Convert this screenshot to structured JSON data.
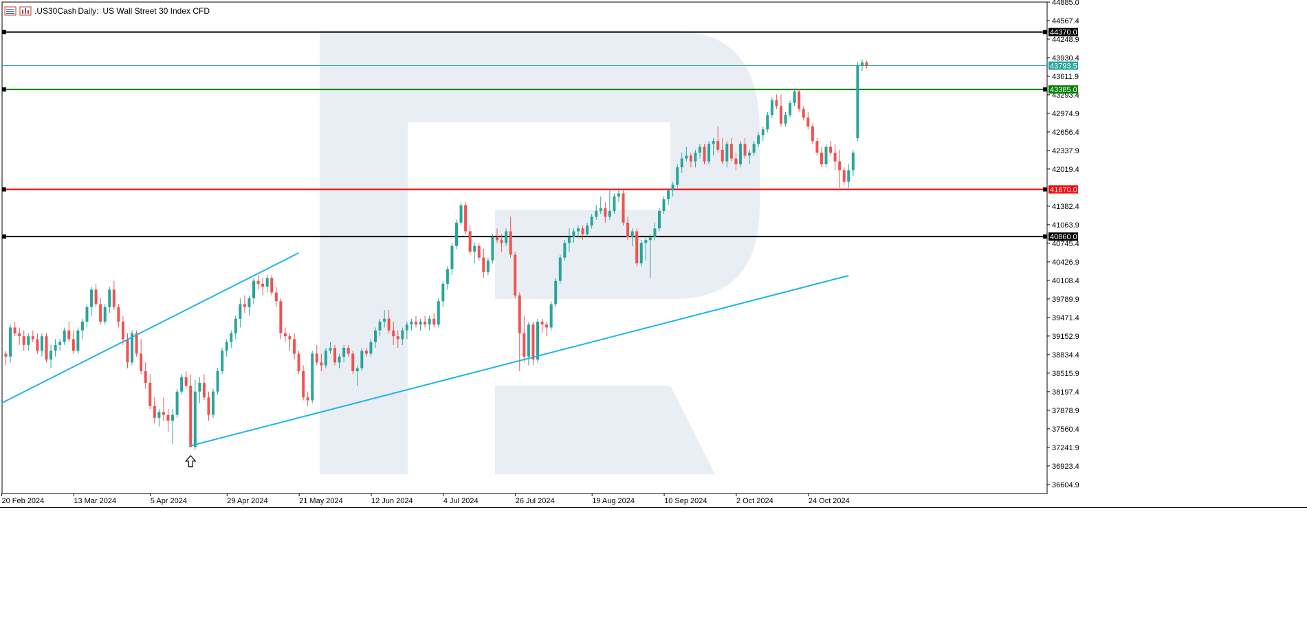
{
  "header": {
    "symbol": ".US30Cash",
    "timeframe": "Daily:",
    "description": "US Wall Street 30 Index CFD"
  },
  "colors": {
    "bull": "#26a69a",
    "bear": "#ef5350",
    "trendline": "#1eb4f0",
    "resistance_black": "#000000",
    "level_green": "#008000",
    "level_red": "#ff0000",
    "current_price": "#26a69a",
    "watermark": "#e9eef5"
  },
  "chart_data": {
    "type": "candlestick",
    "ylim": [
      36450,
      44885.0
    ],
    "y_ticks": [
      "44885.0",
      "44567.4",
      "44248.9",
      "43930.4",
      "43611.9",
      "43293.4",
      "42974.9",
      "42656.4",
      "42337.9",
      "42019.4",
      "41382.4",
      "41063.9",
      "40745.4",
      "40426.9",
      "40108.4",
      "39789.9",
      "39471.4",
      "39152.9",
      "38834.4",
      "38515.9",
      "38197.4",
      "37878.9",
      "37560.4",
      "37241.9",
      "36923.4",
      "36604.9"
    ],
    "x_labels": [
      {
        "label": "20 Feb 2024",
        "bar": 0
      },
      {
        "label": "13 Mar 2024",
        "bar": 16
      },
      {
        "label": "5 Apr 2024",
        "bar": 33
      },
      {
        "label": "29 Apr 2024",
        "bar": 50
      },
      {
        "label": "21 May 2024",
        "bar": 66
      },
      {
        "label": "12 Jun 2024",
        "bar": 82
      },
      {
        "label": "4 Jul 2024",
        "bar": 98
      },
      {
        "label": "26 Jul 2024",
        "bar": 114
      },
      {
        "label": "19 Aug 2024",
        "bar": 131
      },
      {
        "label": "10 Sep 2024",
        "bar": 147
      },
      {
        "label": "2 Oct 2024",
        "bar": 163
      },
      {
        "label": "24 Oct 2024",
        "bar": 179
      }
    ],
    "levels": [
      {
        "price": 44370.0,
        "label": "44370.0",
        "color": "#000000",
        "width": 2
      },
      {
        "price": 43385.0,
        "label": "43385.0",
        "color": "#008000",
        "width": 2
      },
      {
        "price": 41670.0,
        "label": "41670.0",
        "color": "#ff0000",
        "width": 2
      },
      {
        "price": 40860.0,
        "label": "40860.0",
        "color": "#000000",
        "width": 2
      },
      {
        "price": 43793.5,
        "label": "43793.5",
        "color": "#26a69a",
        "width": 1
      }
    ],
    "trendlines": [
      {
        "bar1": -1,
        "price1": 38000,
        "bar2": 65,
        "price2": 40580
      },
      {
        "bar1": 41,
        "price1": 37270,
        "bar2": 187,
        "price2": 40190
      }
    ],
    "arrow": {
      "bar": 41,
      "price": 37100
    },
    "candles": [
      [
        38850,
        38900,
        38650,
        38800
      ],
      [
        38800,
        39350,
        38700,
        39300
      ],
      [
        39300,
        39400,
        39150,
        39200
      ],
      [
        39200,
        39300,
        39000,
        39150
      ],
      [
        39150,
        39250,
        38900,
        39000
      ],
      [
        39000,
        39200,
        38900,
        39150
      ],
      [
        39150,
        39250,
        39050,
        39100
      ],
      [
        39100,
        39200,
        38850,
        38900
      ],
      [
        38900,
        39200,
        38800,
        39150
      ],
      [
        39150,
        39200,
        38700,
        38750
      ],
      [
        38750,
        39000,
        38600,
        38900
      ],
      [
        38900,
        39100,
        38800,
        39000
      ],
      [
        39000,
        39100,
        38900,
        39050
      ],
      [
        39050,
        39300,
        39000,
        39250
      ],
      [
        39250,
        39400,
        39050,
        39100
      ],
      [
        39100,
        39250,
        38850,
        38900
      ],
      [
        38900,
        39300,
        38850,
        39250
      ],
      [
        39250,
        39450,
        39100,
        39400
      ],
      [
        39400,
        39700,
        39300,
        39650
      ],
      [
        39650,
        40000,
        39500,
        39950
      ],
      [
        39950,
        40050,
        39650,
        39700
      ],
      [
        39700,
        39800,
        39350,
        39400
      ],
      [
        39400,
        39700,
        39350,
        39650
      ],
      [
        39650,
        40000,
        39550,
        39950
      ],
      [
        39950,
        40100,
        39600,
        39650
      ],
      [
        39650,
        39700,
        39300,
        39400
      ],
      [
        39400,
        39500,
        39000,
        39100
      ],
      [
        39100,
        39200,
        38600,
        38700
      ],
      [
        38700,
        39250,
        38650,
        39200
      ],
      [
        39200,
        39250,
        38800,
        38850
      ],
      [
        38850,
        39100,
        38500,
        38550
      ],
      [
        38550,
        38700,
        38250,
        38350
      ],
      [
        38350,
        38500,
        37900,
        37950
      ],
      [
        37950,
        38100,
        37650,
        37750
      ],
      [
        37750,
        37900,
        37600,
        37850
      ],
      [
        37850,
        38100,
        37700,
        37800
      ],
      [
        37800,
        37900,
        37500,
        37700
      ],
      [
        37700,
        37900,
        37300,
        37800
      ],
      [
        37800,
        38250,
        37750,
        38200
      ],
      [
        38200,
        38500,
        38150,
        38450
      ],
      [
        38450,
        38550,
        38250,
        38300
      ],
      [
        38300,
        38500,
        37250,
        37250
      ],
      [
        37250,
        38400,
        37200,
        38200
      ],
      [
        38200,
        38450,
        38000,
        38350
      ],
      [
        38350,
        38500,
        38050,
        38100
      ],
      [
        38100,
        38200,
        37700,
        37800
      ],
      [
        37800,
        38250,
        37750,
        38200
      ],
      [
        38200,
        38600,
        38150,
        38550
      ],
      [
        38550,
        38950,
        38500,
        38900
      ],
      [
        38900,
        39100,
        38800,
        39050
      ],
      [
        39050,
        39250,
        38950,
        39200
      ],
      [
        39200,
        39500,
        39100,
        39450
      ],
      [
        39450,
        39800,
        39300,
        39700
      ],
      [
        39700,
        39850,
        39550,
        39650
      ],
      [
        39650,
        39850,
        39500,
        39800
      ],
      [
        39800,
        40150,
        39700,
        40100
      ],
      [
        40100,
        40200,
        39950,
        40050
      ],
      [
        40050,
        40150,
        39850,
        40000
      ],
      [
        40000,
        40200,
        39900,
        40150
      ],
      [
        40150,
        40200,
        39850,
        39900
      ],
      [
        39900,
        40000,
        39650,
        39750
      ],
      [
        39750,
        39800,
        39100,
        39200
      ],
      [
        39200,
        39300,
        39050,
        39150
      ],
      [
        39150,
        39200,
        38900,
        39100
      ],
      [
        39100,
        39200,
        38750,
        38850
      ],
      [
        38850,
        38900,
        38500,
        38550
      ],
      [
        38550,
        38650,
        38050,
        38100
      ],
      [
        38100,
        38200,
        37950,
        38050
      ],
      [
        38050,
        38900,
        38000,
        38850
      ],
      [
        38850,
        39000,
        38650,
        38700
      ],
      [
        38700,
        38850,
        38550,
        38650
      ],
      [
        38650,
        38950,
        38600,
        38900
      ],
      [
        38900,
        39050,
        38850,
        38950
      ],
      [
        38950,
        39000,
        38650,
        38700
      ],
      [
        38700,
        38850,
        38600,
        38800
      ],
      [
        38800,
        39000,
        38700,
        38950
      ],
      [
        38950,
        39000,
        38800,
        38850
      ],
      [
        38850,
        38900,
        38500,
        38550
      ],
      [
        38550,
        38650,
        38300,
        38600
      ],
      [
        38600,
        38950,
        38550,
        38900
      ],
      [
        38900,
        38950,
        38800,
        38850
      ],
      [
        38850,
        39100,
        38800,
        39050
      ],
      [
        39050,
        39300,
        38950,
        39250
      ],
      [
        39250,
        39450,
        39150,
        39400
      ],
      [
        39400,
        39600,
        39300,
        39450
      ],
      [
        39450,
        39600,
        39200,
        39250
      ],
      [
        39250,
        39400,
        39000,
        39150
      ],
      [
        39150,
        39250,
        38950,
        39100
      ],
      [
        39100,
        39300,
        39000,
        39250
      ],
      [
        39250,
        39400,
        39100,
        39350
      ],
      [
        39350,
        39450,
        39250,
        39400
      ],
      [
        39400,
        39500,
        39300,
        39350
      ],
      [
        39350,
        39450,
        39250,
        39400
      ],
      [
        39400,
        39500,
        39300,
        39350
      ],
      [
        39350,
        39500,
        39250,
        39450
      ],
      [
        39450,
        39550,
        39300,
        39350
      ],
      [
        39350,
        39800,
        39300,
        39750
      ],
      [
        39750,
        40100,
        39650,
        40050
      ],
      [
        40050,
        40350,
        39950,
        40300
      ],
      [
        40300,
        40750,
        40200,
        40700
      ],
      [
        40700,
        41150,
        40650,
        41100
      ],
      [
        41100,
        41450,
        41050,
        41400
      ],
      [
        41400,
        41450,
        40900,
        40950
      ],
      [
        40950,
        41050,
        40550,
        40600
      ],
      [
        40600,
        40750,
        40400,
        40700
      ],
      [
        40700,
        40750,
        40450,
        40500
      ],
      [
        40500,
        40650,
        40150,
        40250
      ],
      [
        40250,
        40500,
        40200,
        40450
      ],
      [
        40450,
        40900,
        40400,
        40850
      ],
      [
        40850,
        41000,
        40750,
        40800
      ],
      [
        40800,
        40900,
        40600,
        40750
      ],
      [
        40750,
        41000,
        40700,
        40950
      ],
      [
        40950,
        41200,
        40500,
        40550
      ],
      [
        40550,
        40600,
        39800,
        39850
      ],
      [
        39850,
        39900,
        38550,
        39200
      ],
      [
        39200,
        39500,
        38700,
        38800
      ],
      [
        38800,
        39400,
        38650,
        39350
      ],
      [
        39350,
        39400,
        38650,
        38750
      ],
      [
        38750,
        39450,
        38700,
        39400
      ],
      [
        39400,
        39450,
        39200,
        39350
      ],
      [
        39350,
        39400,
        39150,
        39300
      ],
      [
        39300,
        39750,
        39250,
        39700
      ],
      [
        39700,
        40150,
        39650,
        40100
      ],
      [
        40100,
        40550,
        40050,
        40500
      ],
      [
        40500,
        40800,
        40450,
        40750
      ],
      [
        40750,
        41000,
        40600,
        40850
      ],
      [
        40850,
        41000,
        40750,
        40950
      ],
      [
        40950,
        41050,
        40850,
        41000
      ],
      [
        41000,
        41050,
        40800,
        40900
      ],
      [
        40900,
        41100,
        40850,
        41050
      ],
      [
        41050,
        41250,
        41000,
        41200
      ],
      [
        41200,
        41400,
        41150,
        41300
      ],
      [
        41300,
        41550,
        41250,
        41350
      ],
      [
        41350,
        41450,
        41100,
        41200
      ],
      [
        41200,
        41650,
        41150,
        41300
      ],
      [
        41300,
        41600,
        41250,
        41550
      ],
      [
        41550,
        41700,
        41450,
        41600
      ],
      [
        41600,
        41650,
        41050,
        41100
      ],
      [
        41100,
        41200,
        40800,
        40850
      ],
      [
        40850,
        41000,
        40700,
        40950
      ],
      [
        40950,
        41000,
        40350,
        40400
      ],
      [
        40400,
        40800,
        40350,
        40750
      ],
      [
        40750,
        40850,
        40450,
        40800
      ],
      [
        40800,
        40900,
        40150,
        40850
      ],
      [
        40850,
        41100,
        40800,
        41000
      ],
      [
        41000,
        41350,
        40950,
        41300
      ],
      [
        41300,
        41550,
        41250,
        41500
      ],
      [
        41500,
        41700,
        41400,
        41650
      ],
      [
        41650,
        41800,
        41550,
        41750
      ],
      [
        41750,
        42100,
        41700,
        42050
      ],
      [
        42050,
        42300,
        41950,
        42200
      ],
      [
        42200,
        42400,
        42150,
        42250
      ],
      [
        42250,
        42300,
        42050,
        42150
      ],
      [
        42150,
        42350,
        42050,
        42300
      ],
      [
        42300,
        42450,
        42200,
        42400
      ],
      [
        42400,
        42450,
        42100,
        42150
      ],
      [
        42150,
        42500,
        42100,
        42450
      ],
      [
        42450,
        42550,
        42250,
        42500
      ],
      [
        42500,
        42750,
        42300,
        42350
      ],
      [
        42350,
        42550,
        42100,
        42150
      ],
      [
        42150,
        42500,
        42050,
        42450
      ],
      [
        42450,
        42550,
        42150,
        42200
      ],
      [
        42200,
        42300,
        42000,
        42100
      ],
      [
        42100,
        42500,
        42050,
        42450
      ],
      [
        42450,
        42550,
        42200,
        42250
      ],
      [
        42250,
        42350,
        42100,
        42300
      ],
      [
        42300,
        42500,
        42250,
        42450
      ],
      [
        42450,
        42650,
        42400,
        42600
      ],
      [
        42600,
        42750,
        42500,
        42700
      ],
      [
        42700,
        43000,
        42650,
        42950
      ],
      [
        42950,
        43250,
        42900,
        43200
      ],
      [
        43200,
        43300,
        43050,
        43100
      ],
      [
        43100,
        43300,
        42750,
        42800
      ],
      [
        42800,
        43000,
        42750,
        42950
      ],
      [
        42950,
        43200,
        42900,
        43150
      ],
      [
        43150,
        43400,
        43100,
        43350
      ],
      [
        43350,
        43400,
        43000,
        43050
      ],
      [
        43050,
        43100,
        42850,
        42900
      ],
      [
        42900,
        43000,
        42700,
        42750
      ],
      [
        42750,
        42800,
        42450,
        42500
      ],
      [
        42500,
        42550,
        42250,
        42300
      ],
      [
        42300,
        42400,
        42050,
        42100
      ],
      [
        42100,
        42450,
        42050,
        42400
      ],
      [
        42400,
        42500,
        42250,
        42300
      ],
      [
        42300,
        42450,
        42000,
        42150
      ],
      [
        42150,
        42350,
        41700,
        42000
      ],
      [
        42000,
        42050,
        41750,
        41800
      ],
      [
        41800,
        42100,
        41700,
        42000
      ],
      [
        42000,
        42350,
        41900,
        42300
      ],
      [
        42550,
        43850,
        42500,
        43800
      ],
      [
        43800,
        43900,
        43700,
        43850
      ],
      [
        43850,
        43880,
        43750,
        43795
      ]
    ]
  }
}
